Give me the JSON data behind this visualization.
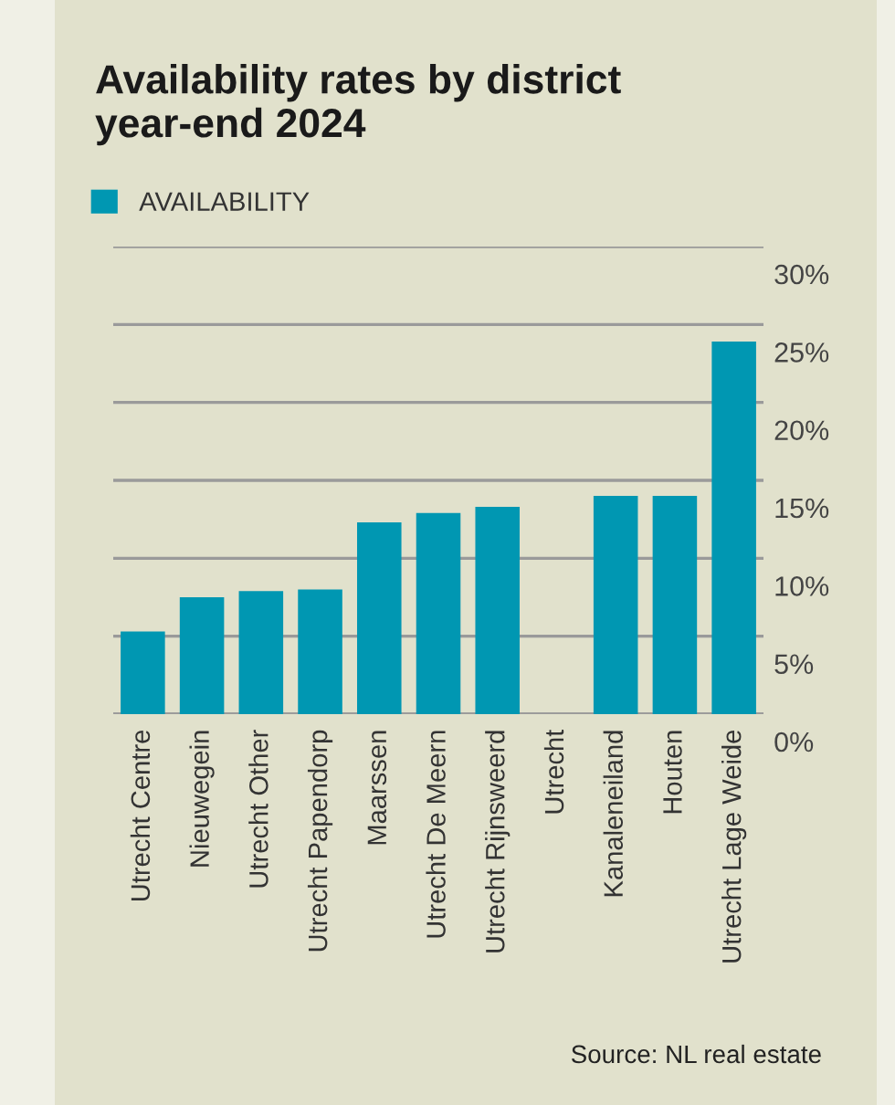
{
  "chart_data": {
    "type": "bar",
    "title": "Availability rates by district\nyear-end 2024",
    "categories": [
      "Utrecht Centre",
      "Nieuwegein",
      "Utrecht Other",
      "Utrecht Papendorp",
      "Maarssen",
      "Utrecht De Meern",
      "Utrecht Rijnsweerd",
      "Utrecht",
      "Kanaleneiland",
      "Houten",
      "Utrecht Lage Weide"
    ],
    "series": [
      {
        "name": "AVAILABILITY",
        "color": "#0097b2",
        "values": [
          5.3,
          7.5,
          7.9,
          8.0,
          12.3,
          12.9,
          13.3,
          null,
          14.0,
          14.0,
          23.9
        ]
      }
    ],
    "ylim": [
      0,
      30
    ],
    "yticks": [
      {
        "value": 0,
        "label": "0%"
      },
      {
        "value": 5,
        "label": "5%"
      },
      {
        "value": 10,
        "label": "10%"
      },
      {
        "value": 15,
        "label": "15%"
      },
      {
        "value": 20,
        "label": "20%"
      },
      {
        "value": 25,
        "label": "25%"
      },
      {
        "value": 30,
        "label": "30%"
      }
    ],
    "grid": "y",
    "legend": "top left",
    "annotations": [
      "Source: NL real estate"
    ]
  }
}
